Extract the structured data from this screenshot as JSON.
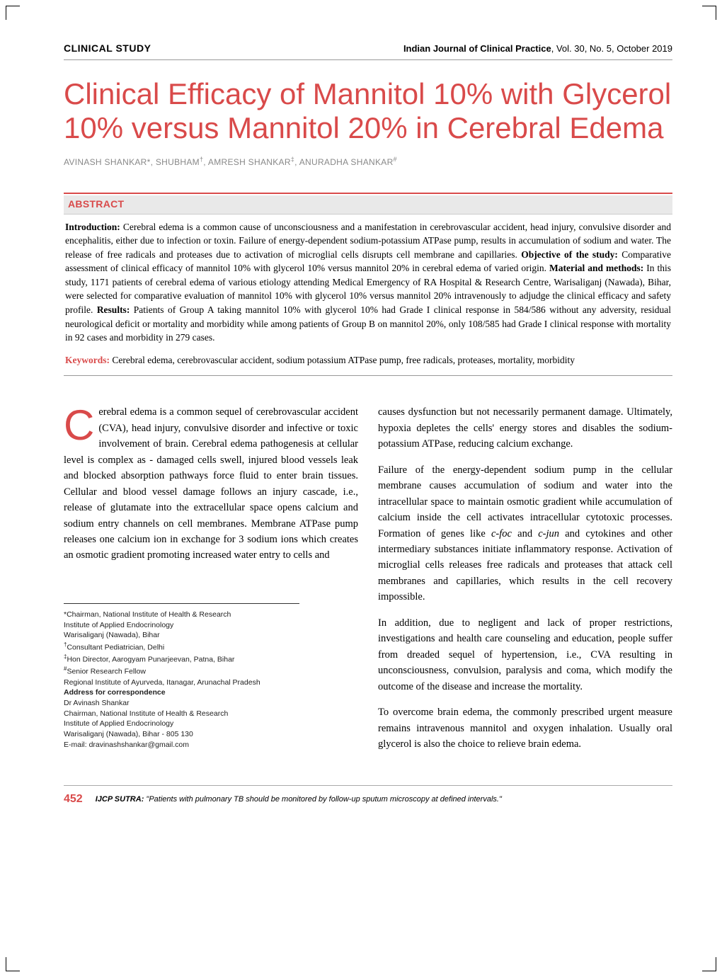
{
  "header": {
    "section_label": "CLINICAL STUDY",
    "journal_name": "Indian Journal of Clinical Practice",
    "issue": ", Vol. 30, No. 5, October 2019"
  },
  "title": "Clinical Efficacy of Mannitol 10% with Glycerol 10% versus Mannitol 20% in Cerebral Edema",
  "authors_line": "AVINASH SHANKAR*, SHUBHAM†, AMRESH SHANKAR‡, ANURADHA SHANKAR#",
  "abstract": {
    "label": "ABSTRACT",
    "intro_label": "Introduction:",
    "intro_text": " Cerebral edema is a common cause of unconsciousness and a manifestation in cerebrovascular accident, head injury, convulsive disorder and encephalitis, either due to infection or toxin. Failure of energy-dependent sodium-potassium ATPase pump, results in accumulation of sodium and water. The release of free radicals and proteases due to activation of microglial cells disrupts cell membrane and capillaries. ",
    "objective_label": "Objective of the study:",
    "objective_text": " Comparative assessment of clinical efficacy of mannitol 10% with glycerol 10% versus mannitol 20% in cerebral edema of varied origin. ",
    "methods_label": "Material and methods:",
    "methods_text": " In this study, 1171 patients of cerebral edema of various etiology attending Medical Emergency of RA Hospital & Research Centre, Warisaliganj (Nawada), Bihar, were selected for comparative evaluation of mannitol 10% with glycerol 10% versus mannitol 20% intravenously to adjudge the clinical efficacy and safety profile. ",
    "results_label": "Results:",
    "results_text": " Patients of Group A taking mannitol 10% with glycerol 10% had Grade I clinical response in 584/586 without any adversity, residual neurological deficit or mortality and morbidity while among patients of Group B on mannitol 20%, only 108/585 had Grade I clinical response with mortality in 92 cases and morbidity in 279 cases."
  },
  "keywords": {
    "label": "Keywords:",
    "text": " Cerebral edema, cerebrovascular accident, sodium potassium ATPase pump, free radicals, proteases, mortality, morbidity"
  },
  "body": {
    "left": {
      "dropcap": "C",
      "p1_rest": "erebral edema is a common sequel of cerebrovascular accident (CVA), head injury, convulsive disorder and infective or toxic involvement of brain. Cerebral edema pathogenesis at cellular level is complex as - damaged cells swell, injured blood vessels leak and blocked absorption pathways force fluid to enter brain tissues. Cellular and blood vessel damage follows an injury cascade, i.e., release of glutamate into the extracellular space opens calcium and sodium entry channels on cell membranes. Membrane ATPase pump releases one calcium ion in exchange for 3 sodium ions which creates an osmotic gradient promoting increased water entry to cells and"
    },
    "right": {
      "p1": "causes dysfunction but not necessarily permanent damage. Ultimately, hypoxia depletes the cells' energy stores and disables the sodium-potassium ATPase, reducing calcium exchange.",
      "p2_a": "Failure of the energy-dependent sodium pump in the cellular membrane causes accumulation of sodium and water into the intracellular space to maintain osmotic gradient while accumulation of calcium inside the cell activates intracellular cytotoxic processes. Formation of genes like ",
      "p2_i1": "c-foc",
      "p2_b": " and ",
      "p2_i2": "c-jun",
      "p2_c": " and cytokines and other intermediary substances initiate inflammatory response. Activation of microglial cells releases free radicals and proteases that attack cell membranes and capillaries, which results in the cell recovery impossible.",
      "p3": "In addition, due to negligent and lack of proper restrictions, investigations and health care counseling and education, people suffer from dreaded sequel of hypertension, i.e., CVA resulting in unconsciousness, convulsion, paralysis and coma, which modify the outcome of the disease and increase the mortality.",
      "p4": "To overcome brain edema, the commonly prescribed urgent measure remains intravenous mannitol and oxygen inhalation. Usually oral glycerol is also the choice to relieve brain edema."
    }
  },
  "affiliations": {
    "l1": "*Chairman, National Institute of Health & Research",
    "l2": "Institute of Applied Endocrinology",
    "l3": "Warisaliganj (Nawada), Bihar",
    "l4": "†Consultant Pediatrician, Delhi",
    "l5": "‡Hon Director, Aarogyam Punarjeevan, Patna, Bihar",
    "l6": "#Senior Research Fellow",
    "l7": "Regional Institute of Ayurveda, Itanagar, Arunachal Pradesh",
    "addr_label": "Address for correspondence",
    "l8": "Dr Avinash Shankar",
    "l9": "Chairman, National Institute of Health & Research",
    "l10": "Institute of Applied Endocrinology",
    "l11": "Warisaliganj (Nawada), Bihar - 805 130",
    "l12": "E-mail: dravinashshankar@gmail.com"
  },
  "footer": {
    "page": "452",
    "sutra_label": "IJCP SUTRA:",
    "sutra_text": " \"Patients with pulmonary TB should be monitored by follow-up sputum microscopy at defined intervals.\""
  },
  "colors": {
    "accent": "#d94a4a",
    "author_gray": "#888888",
    "abstract_bg": "#e9e9e9",
    "rule_gray": "#999999"
  }
}
